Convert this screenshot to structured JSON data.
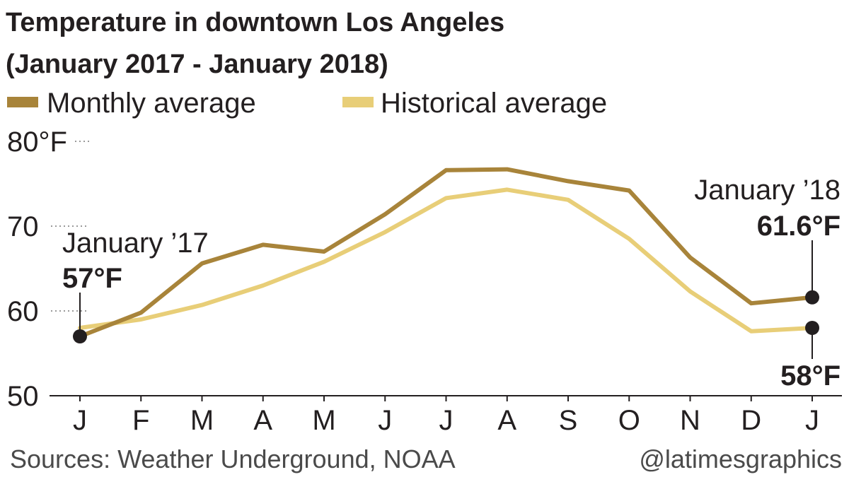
{
  "title": "Temperature in downtown Los Angeles",
  "subtitle": "(January 2017 - January 2018)",
  "legend": [
    {
      "label": "Monthly average",
      "color": "#a8843a"
    },
    {
      "label": "Historical average",
      "color": "#e8ce78"
    }
  ],
  "annotations": {
    "start_label": "January ’17",
    "start_value": "57°F",
    "end_label": "January ’18",
    "end_monthly_value": "61.6°F",
    "end_historical_value": "58°F"
  },
  "footer": {
    "source": "Sources: Weather Underground, NOAA",
    "credit": "@latimesgraphics"
  },
  "colors": {
    "monthly": "#a8843a",
    "historical": "#e8ce78",
    "dot": "#231f20",
    "grid": "#9a9a9a"
  },
  "chart_data": {
    "type": "line",
    "categories": [
      "J",
      "F",
      "M",
      "A",
      "M",
      "J",
      "J",
      "A",
      "S",
      "O",
      "N",
      "D",
      "J"
    ],
    "series": [
      {
        "name": "Monthly average",
        "values": [
          57.0,
          59.8,
          65.6,
          67.8,
          67.0,
          71.4,
          76.6,
          76.7,
          75.3,
          74.2,
          66.3,
          60.9,
          61.6
        ]
      },
      {
        "name": "Historical average",
        "values": [
          58.0,
          59.0,
          60.7,
          63.0,
          65.8,
          69.3,
          73.3,
          74.3,
          73.1,
          68.5,
          62.3,
          57.6,
          58.0
        ]
      }
    ],
    "yticks": [
      {
        "value": 80,
        "label": "80°F"
      },
      {
        "value": 70,
        "label": "70"
      },
      {
        "value": 60,
        "label": "60"
      },
      {
        "value": 50,
        "label": "50"
      }
    ],
    "ylim": [
      50,
      80
    ],
    "grid": "dotted tick leaders only",
    "legend_position": "top-left"
  }
}
